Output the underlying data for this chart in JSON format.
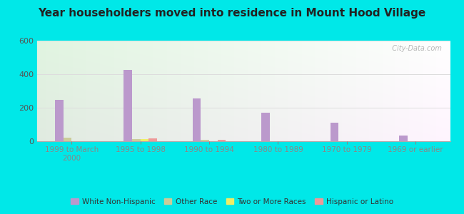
{
  "title": "Year householders moved into residence in Mount Hood Village",
  "categories": [
    "1999 to March\n2000",
    "1995 to 1998",
    "1990 to 1994",
    "1980 to 1989",
    "1970 to 1979",
    "1969 or earlier"
  ],
  "series": {
    "White Non-Hispanic": [
      245,
      425,
      255,
      170,
      110,
      35
    ],
    "Other Race": [
      20,
      13,
      8,
      0,
      0,
      0
    ],
    "Two or More Races": [
      0,
      13,
      0,
      0,
      0,
      0
    ],
    "Hispanic or Latino": [
      0,
      16,
      10,
      0,
      0,
      0
    ]
  },
  "colors": {
    "White Non-Hispanic": "#bb99cc",
    "Other Race": "#cccc99",
    "Two or More Races": "#eeee66",
    "Hispanic or Latino": "#ee9999"
  },
  "ylim": [
    0,
    600
  ],
  "yticks": [
    0,
    200,
    400,
    600
  ],
  "background_outer": "#00e8e8",
  "grid_color": "#dddddd",
  "bar_width": 0.12,
  "watermark": "  City-Data.com"
}
